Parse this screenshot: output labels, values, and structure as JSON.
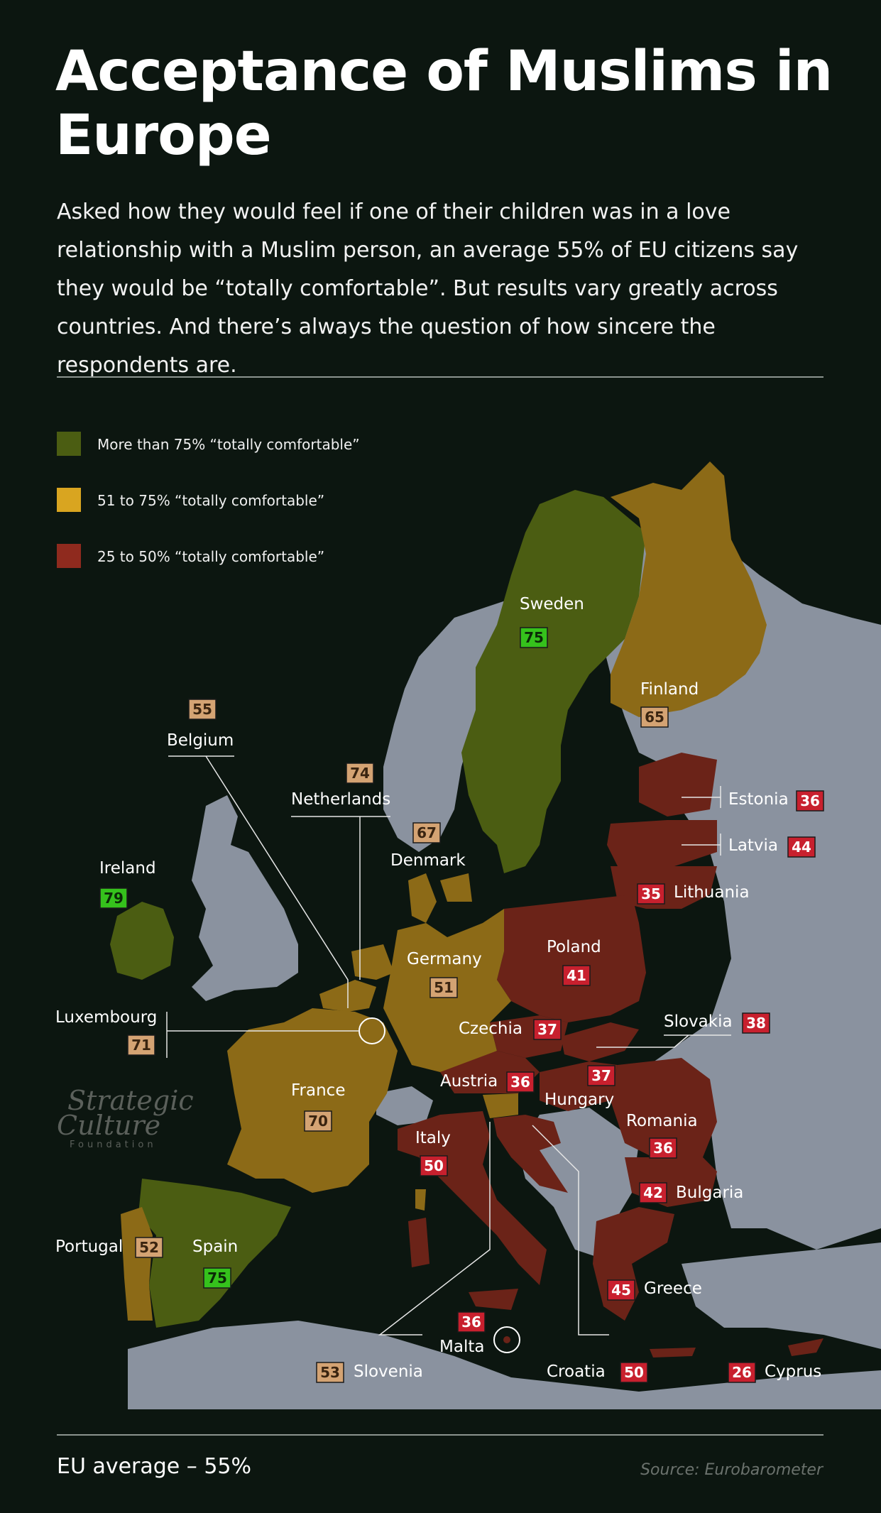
{
  "title": "Acceptance of Muslims in Europe",
  "subtitle": "Asked how they would feel if one of their children was in a love relationship with a Muslim person, an average 55% of EU citizens say they would be “totally comfortable”. But results vary greatly across countries. And there’s always the question of how sincere the respondents are.",
  "legend": [
    {
      "label": "More than 75% “totally comfortable”",
      "color": "#4b5d12"
    },
    {
      "label": "51 to 75% “totally comfortable”",
      "color": "#d9a520"
    },
    {
      "label": "25 to 50% “totally comfortable”",
      "color": "#8f2a1e"
    }
  ],
  "colors": {
    "background": "#0c1610",
    "non_eu_land": "#8a929f",
    "high_fill": "#4b5d12",
    "mid_fill": "#8c6a17",
    "low_fill": "#6b2318",
    "badge_high": "#35c21c",
    "badge_mid": "#d4a373",
    "badge_low": "#c8202e"
  },
  "countries": [
    {
      "name": "Sweden",
      "value": 75,
      "category": "high"
    },
    {
      "name": "Finland",
      "value": 65,
      "category": "mid"
    },
    {
      "name": "Estonia",
      "value": 36,
      "category": "low"
    },
    {
      "name": "Latvia",
      "value": 44,
      "category": "low"
    },
    {
      "name": "Lithuania",
      "value": 35,
      "category": "low"
    },
    {
      "name": "Belgium",
      "value": 55,
      "category": "mid"
    },
    {
      "name": "Netherlands",
      "value": 74,
      "category": "mid"
    },
    {
      "name": "Denmark",
      "value": 67,
      "category": "mid"
    },
    {
      "name": "Ireland",
      "value": 79,
      "category": "high"
    },
    {
      "name": "Germany",
      "value": 51,
      "category": "mid"
    },
    {
      "name": "Poland",
      "value": 41,
      "category": "low"
    },
    {
      "name": "Luxembourg",
      "value": 71,
      "category": "mid"
    },
    {
      "name": "Czechia",
      "value": 37,
      "category": "low"
    },
    {
      "name": "Slovakia",
      "value": 38,
      "category": "low"
    },
    {
      "name": "Austria",
      "value": 36,
      "category": "low"
    },
    {
      "name": "Hungary",
      "value": 37,
      "category": "low"
    },
    {
      "name": "France",
      "value": 70,
      "category": "mid"
    },
    {
      "name": "Romania",
      "value": 36,
      "category": "low"
    },
    {
      "name": "Italy",
      "value": 50,
      "category": "low"
    },
    {
      "name": "Bulgaria",
      "value": 42,
      "category": "low"
    },
    {
      "name": "Portugal",
      "value": 52,
      "category": "mid"
    },
    {
      "name": "Spain",
      "value": 75,
      "category": "high"
    },
    {
      "name": "Greece",
      "value": 45,
      "category": "low"
    },
    {
      "name": "Malta",
      "value": 36,
      "category": "low"
    },
    {
      "name": "Slovenia",
      "value": 53,
      "category": "mid"
    },
    {
      "name": "Croatia",
      "value": 50,
      "category": "low"
    },
    {
      "name": "Cyprus",
      "value": 26,
      "category": "low"
    }
  ],
  "watermark": {
    "line1": "Strategic",
    "line2": "Culture",
    "line3": "Foundation"
  },
  "footer": {
    "eu_average": "EU average – 55%",
    "source": "Source: Eurobarometer"
  }
}
